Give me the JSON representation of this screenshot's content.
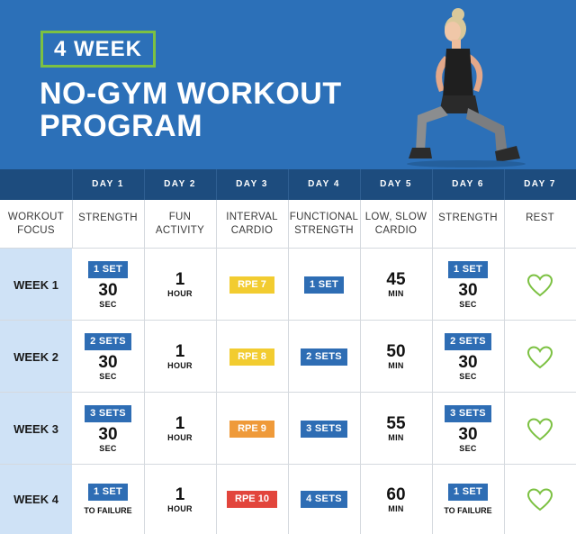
{
  "hero": {
    "badge": "4 WEEK",
    "title_line1": "NO-GYM WORKOUT",
    "title_line2": "PROGRAM"
  },
  "days": [
    "DAY 1",
    "DAY 2",
    "DAY 3",
    "DAY 4",
    "DAY 5",
    "DAY 6",
    "DAY 7"
  ],
  "focus": {
    "label_line1": "WORKOUT",
    "label_line2": "FOCUS",
    "items": [
      {
        "line1": "STRENGTH",
        "line2": ""
      },
      {
        "line1": "FUN",
        "line2": "ACTIVITY"
      },
      {
        "line1": "INTERVAL",
        "line2": "CARDIO"
      },
      {
        "line1": "FUNCTIONAL",
        "line2": "STRENGTH"
      },
      {
        "line1": "LOW, SLOW",
        "line2": "CARDIO"
      },
      {
        "line1": "STRENGTH",
        "line2": ""
      },
      {
        "line1": "REST",
        "line2": ""
      }
    ]
  },
  "weeks": [
    {
      "label": "WEEK 1",
      "strength": {
        "sets": "1 SET",
        "value": "30",
        "unit": "SEC"
      },
      "fun": {
        "value": "1",
        "unit": "HOUR"
      },
      "interval": {
        "rpe": "RPE 7",
        "color": "#f2cc30"
      },
      "functional": {
        "sets": "1 SET"
      },
      "cardio": {
        "value": "45",
        "unit": "MIN"
      },
      "strength2": {
        "sets": "1 SET",
        "value": "30",
        "unit": "SEC"
      }
    },
    {
      "label": "WEEK 2",
      "strength": {
        "sets": "2 SETS",
        "value": "30",
        "unit": "SEC"
      },
      "fun": {
        "value": "1",
        "unit": "HOUR"
      },
      "interval": {
        "rpe": "RPE 8",
        "color": "#f2cc30"
      },
      "functional": {
        "sets": "2 SETS"
      },
      "cardio": {
        "value": "50",
        "unit": "MIN"
      },
      "strength2": {
        "sets": "2 SETS",
        "value": "30",
        "unit": "SEC"
      }
    },
    {
      "label": "WEEK 3",
      "strength": {
        "sets": "3 SETS",
        "value": "30",
        "unit": "SEC"
      },
      "fun": {
        "value": "1",
        "unit": "HOUR"
      },
      "interval": {
        "rpe": "RPE 9",
        "color": "#ef9a3a"
      },
      "functional": {
        "sets": "3 SETS"
      },
      "cardio": {
        "value": "55",
        "unit": "MIN"
      },
      "strength2": {
        "sets": "3 SETS",
        "value": "30",
        "unit": "SEC"
      }
    },
    {
      "label": "WEEK 4",
      "strength": {
        "sets": "1 SET",
        "failure": "TO FAILURE"
      },
      "fun": {
        "value": "1",
        "unit": "HOUR"
      },
      "interval": {
        "rpe": "RPE 10",
        "color": "#e2453c"
      },
      "functional": {
        "sets": "4 SETS"
      },
      "cardio": {
        "value": "60",
        "unit": "MIN"
      },
      "strength2": {
        "sets": "1 SET",
        "failure": "TO FAILURE"
      }
    }
  ],
  "colors": {
    "hero_blue": "#2c70b8",
    "header_navy": "#1d4c7e",
    "accent_green": "#7cc142",
    "tag_blue": "#2e6db4",
    "week_label_bg": "#cfe2f6"
  },
  "icons": {
    "rest": "heart-outline-icon"
  }
}
